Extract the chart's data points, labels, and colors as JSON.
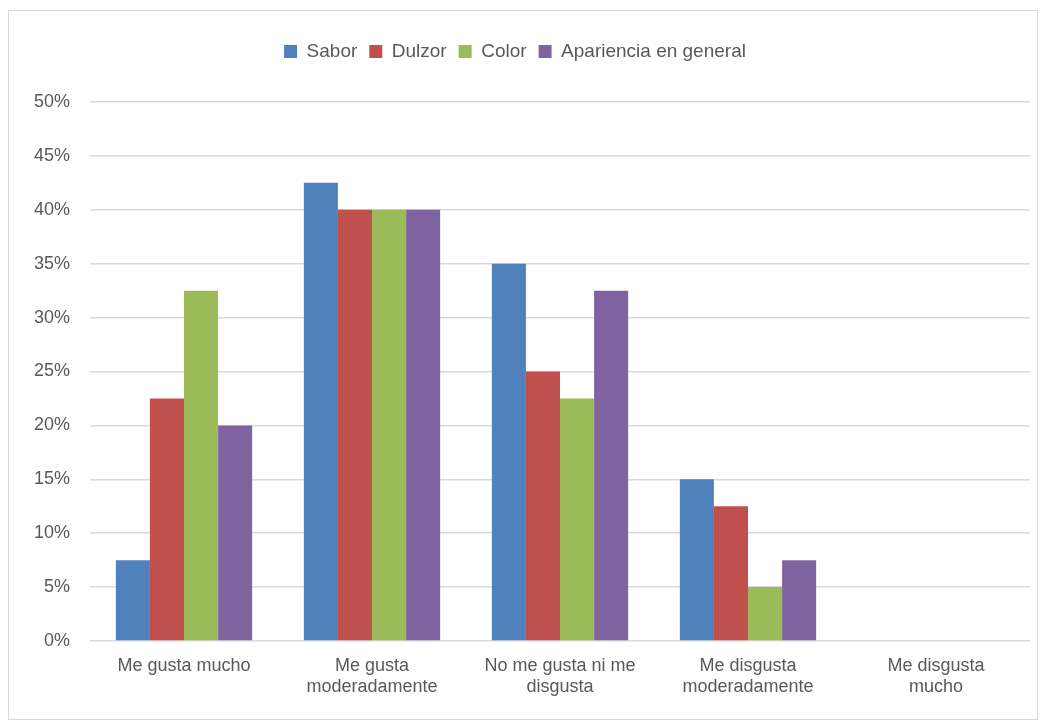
{
  "chart_data": {
    "type": "bar",
    "categories": [
      "Me gusta mucho",
      "Me gusta moderadamente",
      "No me gusta ni me disgusta",
      "Me disgusta moderadamente",
      "Me disgusta mucho"
    ],
    "series": [
      {
        "name": "Sabor",
        "color": "#4f81bd",
        "values": [
          7.5,
          42.5,
          35,
          15,
          0
        ]
      },
      {
        "name": "Dulzor",
        "color": "#c0504d",
        "values": [
          22.5,
          40,
          25,
          12.5,
          0
        ]
      },
      {
        "name": "Color",
        "color": "#9bbb59",
        "values": [
          32.5,
          40,
          22.5,
          5,
          0
        ]
      },
      {
        "name": "Apariencia en general",
        "color": "#8064a2",
        "values": [
          20,
          40,
          32.5,
          7.5,
          0
        ]
      }
    ],
    "ylim": [
      0,
      50
    ],
    "yticks": [
      {
        "value": 0,
        "label": "0%"
      },
      {
        "value": 5,
        "label": "5%"
      },
      {
        "value": 10,
        "label": "10%"
      },
      {
        "value": 15,
        "label": "15%"
      },
      {
        "value": 20,
        "label": "20%"
      },
      {
        "value": 25,
        "label": "25%"
      },
      {
        "value": 30,
        "label": "30%"
      },
      {
        "value": 35,
        "label": "35%"
      },
      {
        "value": 40,
        "label": "40%"
      },
      {
        "value": 45,
        "label": "45%"
      },
      {
        "value": 50,
        "label": "50%"
      }
    ],
    "grid": "y",
    "legend": "top"
  }
}
